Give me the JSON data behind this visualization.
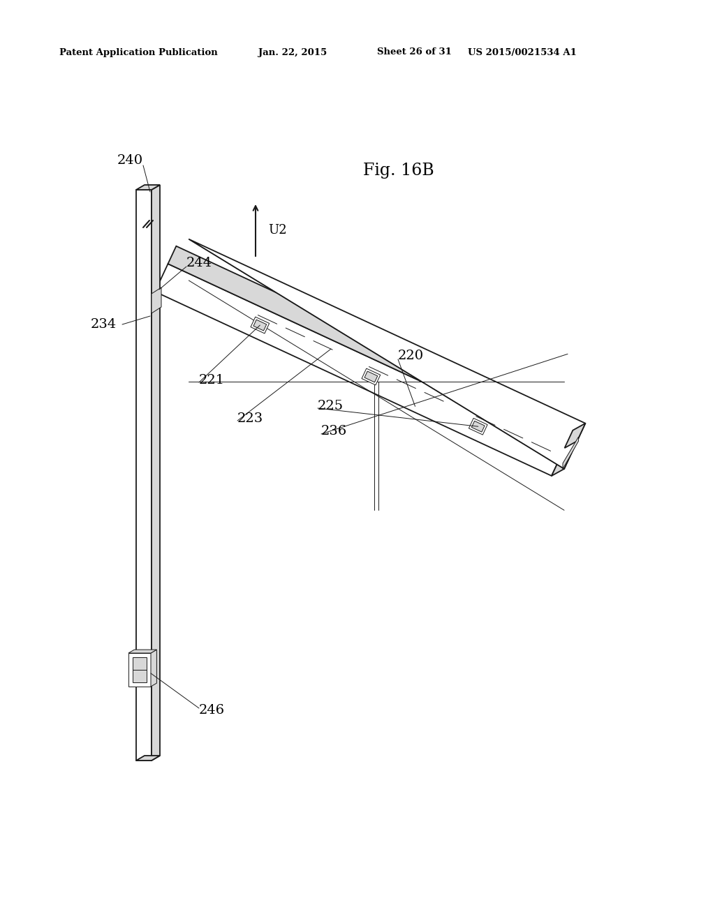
{
  "bg_color": "#ffffff",
  "header_text": "Patent Application Publication",
  "header_date": "Jan. 22, 2015",
  "header_sheet": "Sheet 26 of 31",
  "header_patent": "US 2015/0021534 A1",
  "fig_label": "Fig. 16B",
  "color_main": "#1a1a1a",
  "color_fill": "#d8d8d8",
  "color_white": "#ffffff",
  "lw_main": 1.3,
  "lw_thin": 0.7
}
